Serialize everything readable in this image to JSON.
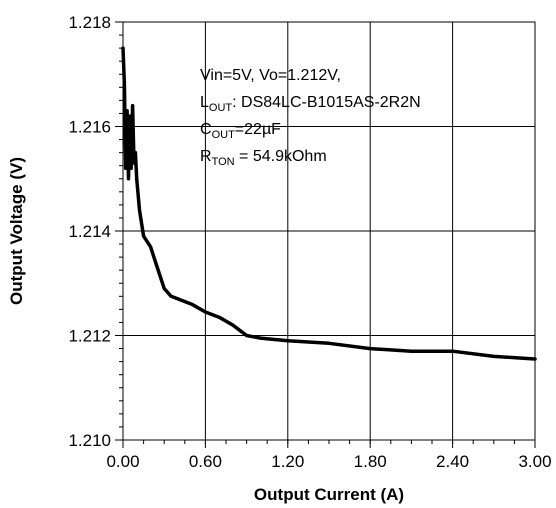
{
  "chart_data": {
    "type": "line",
    "title": "",
    "xlabel": "Output Current (A)",
    "ylabel": "Output Voltage (V)",
    "xlim": [
      0,
      3.0
    ],
    "ylim": [
      1.21,
      1.218
    ],
    "x_ticks": [
      "0.00",
      "0.60",
      "1.20",
      "1.80",
      "2.40",
      "3.00"
    ],
    "y_ticks": [
      "1.210",
      "1.212",
      "1.214",
      "1.216",
      "1.218"
    ],
    "grid": true,
    "annotations": {
      "line1": "Vin=5V, Vo=1.212V,",
      "l_out_main": "L",
      "l_out_sub": "OUT",
      "l_out_value": ": DS84LC-B1015AS-2R2N",
      "c_out_main": "C",
      "c_out_sub": "OUT",
      "c_out_value": "=22µF",
      "r_ton_main": "R",
      "r_ton_sub": "TON",
      "r_ton_value": " = 54.9kOhm"
    },
    "series": [
      {
        "x": [
          0.0,
          0.01,
          0.02,
          0.03,
          0.04,
          0.05,
          0.06,
          0.07,
          0.08,
          0.09,
          0.1,
          0.12,
          0.15,
          0.2,
          0.25,
          0.3,
          0.35,
          0.4,
          0.5,
          0.6,
          0.7,
          0.8,
          0.85,
          0.9,
          1.0,
          1.2,
          1.5,
          1.8,
          2.1,
          2.4,
          2.7,
          3.0
        ],
        "y": [
          1.2175,
          1.2168,
          1.2152,
          1.2163,
          1.215,
          1.2162,
          1.2152,
          1.2164,
          1.2153,
          1.2155,
          1.215,
          1.2144,
          1.2139,
          1.2137,
          1.2133,
          1.2129,
          1.21275,
          1.2127,
          1.2126,
          1.21245,
          1.21235,
          1.2122,
          1.2121,
          1.212,
          1.21195,
          1.2119,
          1.21185,
          1.21175,
          1.2117,
          1.2117,
          1.2116,
          1.21155
        ]
      }
    ]
  }
}
